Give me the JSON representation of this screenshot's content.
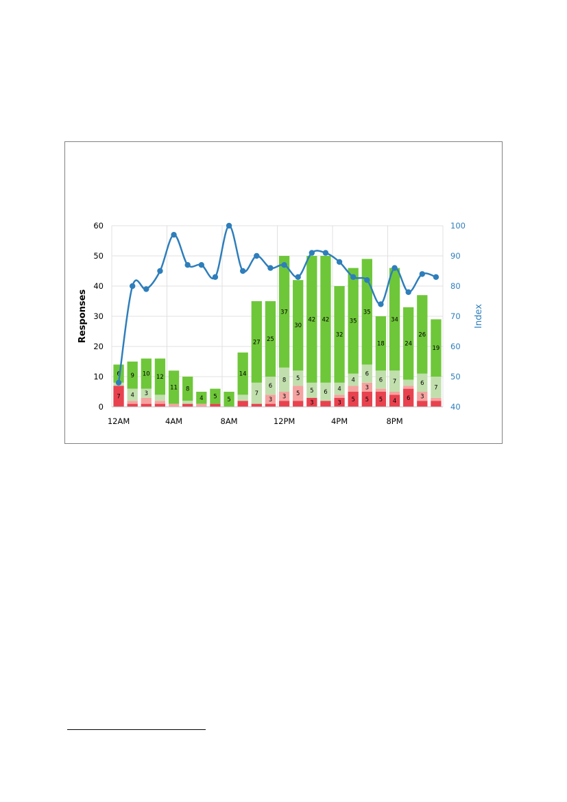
{
  "chart_data": {
    "type": "bar",
    "stacked": true,
    "title": "",
    "ylabel": "Responses",
    "y2label": "Index",
    "ylim": [
      0,
      60
    ],
    "y2lim": [
      40,
      100
    ],
    "yticks": [
      0,
      10,
      20,
      30,
      40,
      50,
      60
    ],
    "y2ticks": [
      40,
      50,
      60,
      70,
      80,
      90,
      100
    ],
    "xtick_labels": [
      "12AM",
      "4AM",
      "8AM",
      "12PM",
      "4PM",
      "8PM"
    ],
    "xtick_positions": [
      0,
      4,
      8,
      12,
      16,
      20
    ],
    "grid": true,
    "legend": "none",
    "categories": [
      "0",
      "1",
      "2",
      "3",
      "4",
      "5",
      "6",
      "7",
      "8",
      "9",
      "10",
      "11",
      "12",
      "13",
      "14",
      "15",
      "16",
      "17",
      "18",
      "19",
      "20",
      "21",
      "22",
      "23"
    ],
    "series": [
      {
        "color": "#e8424f",
        "values": [
          7,
          1,
          1,
          1,
          0,
          1,
          0,
          1,
          0,
          2,
          1,
          1,
          2,
          2,
          3,
          2,
          3,
          5,
          5,
          5,
          4,
          6,
          2,
          2
        ],
        "labels": [
          "7",
          "",
          "",
          "",
          "",
          "",
          "",
          "",
          "",
          "",
          "",
          "",
          "",
          "",
          "3",
          "",
          "3",
          "5",
          "5",
          "5",
          "4",
          "6",
          "",
          ""
        ]
      },
      {
        "color": "#f5a3a0",
        "values": [
          0,
          1,
          2,
          1,
          1,
          0,
          1,
          0,
          0,
          0,
          0,
          3,
          3,
          5,
          0,
          0,
          1,
          2,
          3,
          1,
          1,
          1,
          3,
          1
        ],
        "labels": [
          "",
          "",
          "",
          "",
          "",
          "",
          "",
          "",
          "",
          "",
          "",
          "3",
          "3",
          "5",
          "",
          "",
          "",
          "",
          "3",
          "",
          "",
          "",
          "3",
          ""
        ]
      },
      {
        "color": "#c1dfad",
        "values": [
          1,
          4,
          3,
          2,
          0,
          1,
          0,
          0,
          0,
          2,
          7,
          6,
          8,
          5,
          5,
          6,
          4,
          4,
          6,
          6,
          7,
          2,
          6,
          7
        ],
        "labels": [
          "",
          "4",
          "3",
          "",
          "",
          "",
          "",
          "",
          "",
          "",
          "7",
          "6",
          "8",
          "5",
          "5",
          "6",
          "4",
          "4",
          "6",
          "6",
          "7",
          "",
          "6",
          "7"
        ]
      },
      {
        "color": "#6ec739",
        "values": [
          6,
          9,
          10,
          12,
          11,
          8,
          4,
          5,
          5,
          14,
          27,
          25,
          37,
          30,
          42,
          42,
          32,
          35,
          35,
          18,
          34,
          24,
          26,
          19
        ],
        "labels": [
          "6",
          "9",
          "10",
          "12",
          "11",
          "8",
          "4",
          "5",
          "5",
          "14",
          "27",
          "25",
          "37",
          "30",
          "42",
          "42",
          "32",
          "35",
          "35",
          "18",
          "34",
          "24",
          "26",
          "19"
        ]
      }
    ],
    "line": {
      "axis": "right",
      "color": "#2e7ebb",
      "values": [
        48,
        80,
        79,
        85,
        97,
        87,
        87,
        83,
        100,
        85,
        90,
        86,
        87,
        83,
        91,
        91,
        88,
        83,
        82,
        74,
        86,
        78,
        84,
        83
      ]
    },
    "colors": {
      "axis_text": "#000000",
      "right_axis": "#2e7ebb",
      "grid": "#e0e0e0"
    }
  }
}
